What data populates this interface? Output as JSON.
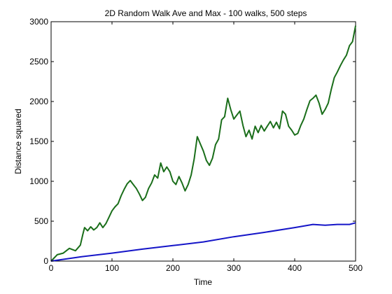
{
  "chart_data": {
    "type": "line",
    "title": "2D Random Walk Ave and Max - 100 walks, 500 steps",
    "xlabel": "Time",
    "ylabel": "Distance squared",
    "xlim": [
      0,
      500
    ],
    "ylim": [
      0,
      3000
    ],
    "xticks": [
      0,
      100,
      200,
      300,
      400,
      500
    ],
    "yticks": [
      0,
      500,
      1000,
      1500,
      2000,
      2500,
      3000
    ],
    "grid": false,
    "series": [
      {
        "color": "#1a6e1a",
        "x": [
          0,
          10,
          20,
          30,
          40,
          48,
          52,
          55,
          60,
          65,
          70,
          75,
          80,
          85,
          90,
          95,
          100,
          105,
          110,
          115,
          120,
          125,
          130,
          135,
          140,
          145,
          150,
          155,
          160,
          165,
          170,
          175,
          180,
          185,
          190,
          195,
          200,
          205,
          210,
          215,
          220,
          225,
          230,
          235,
          240,
          245,
          250,
          255,
          260,
          265,
          270,
          275,
          280,
          285,
          290,
          295,
          300,
          305,
          310,
          315,
          320,
          325,
          330,
          335,
          340,
          345,
          350,
          355,
          360,
          365,
          370,
          375,
          380,
          385,
          390,
          395,
          400,
          405,
          410,
          415,
          420,
          425,
          430,
          435,
          440,
          445,
          450,
          455,
          460,
          465,
          470,
          475,
          480,
          485,
          490,
          495,
          500
        ],
        "values": [
          0,
          80,
          100,
          160,
          130,
          200,
          330,
          420,
          380,
          430,
          390,
          420,
          480,
          420,
          470,
          550,
          630,
          680,
          720,
          820,
          900,
          970,
          1010,
          960,
          910,
          840,
          760,
          800,
          910,
          980,
          1080,
          1040,
          1230,
          1120,
          1180,
          1120,
          1000,
          960,
          1060,
          980,
          880,
          960,
          1080,
          1280,
          1560,
          1470,
          1380,
          1260,
          1200,
          1290,
          1460,
          1530,
          1770,
          1810,
          2040,
          1900,
          1780,
          1830,
          1880,
          1700,
          1560,
          1640,
          1530,
          1690,
          1610,
          1700,
          1630,
          1690,
          1750,
          1670,
          1740,
          1660,
          1880,
          1840,
          1690,
          1640,
          1580,
          1600,
          1700,
          1780,
          1900,
          2010,
          2040,
          2080,
          1980,
          1840,
          1900,
          1980,
          2150,
          2300,
          2370,
          2450,
          2520,
          2580,
          2700,
          2750,
          2950
        ]
      },
      {
        "color": "#1515c8",
        "x": [
          0,
          50,
          100,
          150,
          200,
          250,
          300,
          350,
          400,
          430,
          450,
          470,
          490,
          500
        ],
        "values": [
          0,
          55,
          100,
          150,
          195,
          240,
          305,
          360,
          420,
          460,
          450,
          460,
          460,
          480
        ]
      }
    ]
  }
}
